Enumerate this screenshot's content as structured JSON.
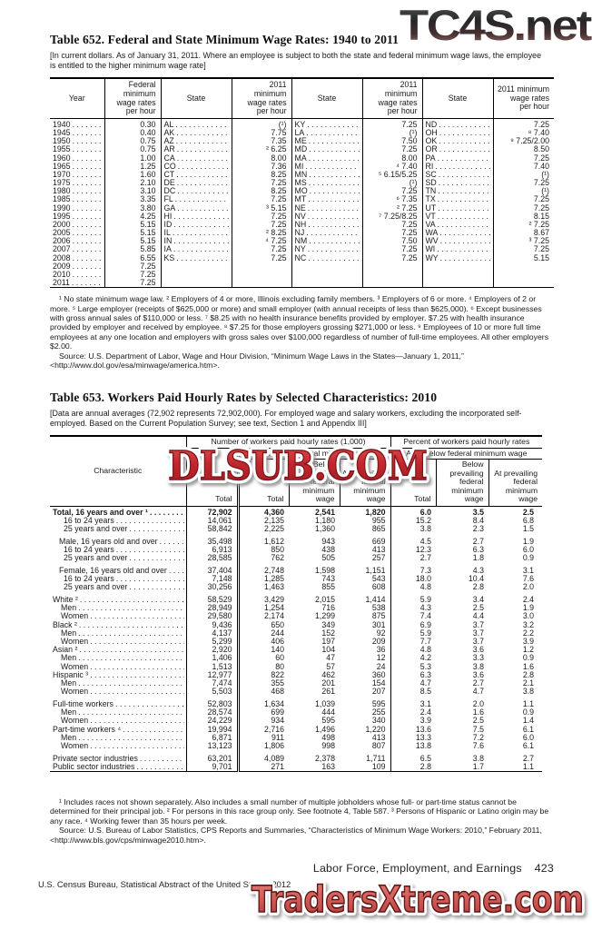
{
  "watermarks": {
    "top": "TC4S.net",
    "middle": "DLSUB.COM",
    "bottom": "TradersXtreme.com"
  },
  "colors": {
    "ink": "#1a1a1a",
    "watermark_red": "#c1272d",
    "watermark_red_light": "#d96a63",
    "tc4s_dark": "#3f3f3f",
    "tc4s_fade": "#9c7470"
  },
  "table652": {
    "title": "Table 652. Federal and State Minimum Wage Rates: 1940 to 2011",
    "note": "[In current dollars. As of January 31, 2011. Where an employee is subject to both the state and federal minimum wage laws, the employee is entitled to the higher minimum wage rate]",
    "headers": {
      "year": "Year",
      "federal": "Federal minimum wage rates per hour",
      "state": "State",
      "rate": "2011 minimum wage rates per hour"
    },
    "years": [
      [
        "1940",
        "0.30"
      ],
      [
        "1945",
        "0.40"
      ],
      [
        "1950",
        "0.75"
      ],
      [
        "1955",
        "0.75"
      ],
      [
        "1960",
        "1.00"
      ],
      [
        "1965",
        "1.25"
      ],
      [
        "1970",
        "1.60"
      ],
      [
        "1975",
        "2.10"
      ],
      [
        "1980",
        "3.10"
      ],
      [
        "1985",
        "3.35"
      ],
      [
        "1990",
        "3.80"
      ],
      [
        "1995",
        "4.25"
      ],
      [
        "2000",
        "5.15"
      ],
      [
        "2005",
        "5.15"
      ],
      [
        "2006",
        "5.15"
      ],
      [
        "2007",
        "5.85"
      ],
      [
        "2008",
        "6.55"
      ],
      [
        "2009",
        "7.25"
      ],
      [
        "2010",
        "7.25"
      ],
      [
        "2011",
        "7.25"
      ]
    ],
    "states_a": [
      [
        "AL",
        "(¹)"
      ],
      [
        "AK",
        "7.75"
      ],
      [
        "AZ",
        "7.35"
      ],
      [
        "AR",
        "² 6.25"
      ],
      [
        "CA",
        "8.00"
      ],
      [
        "CO",
        "7.36"
      ],
      [
        "CT",
        "8.25"
      ],
      [
        "DE",
        "7.25"
      ],
      [
        "DC",
        "8.25"
      ],
      [
        "FL",
        "7.25"
      ],
      [
        "GA",
        "³ 5.15"
      ],
      [
        "HI",
        "7.25"
      ],
      [
        "ID",
        "7.25"
      ],
      [
        "IL",
        "² 8.25"
      ],
      [
        "IN",
        "⁴ 7.25"
      ],
      [
        "IA",
        "7.25"
      ],
      [
        "KS",
        "7.25"
      ]
    ],
    "states_b": [
      [
        "KY",
        "7.25"
      ],
      [
        "LA",
        "(¹)"
      ],
      [
        "ME",
        "7.50"
      ],
      [
        "MD",
        "7.25"
      ],
      [
        "MA",
        "8.00"
      ],
      [
        "MI",
        "⁴ 7.40"
      ],
      [
        "MN",
        "⁵ 6.15/5.25"
      ],
      [
        "MS",
        "(¹)"
      ],
      [
        "MO",
        "7.25"
      ],
      [
        "MT",
        "⁶ 7.35"
      ],
      [
        "NE",
        "² 7.25"
      ],
      [
        "NV",
        "⁷ 7.25/8.25"
      ],
      [
        "NH",
        "7.25"
      ],
      [
        "NJ",
        "7.25"
      ],
      [
        "NM",
        "7.50"
      ],
      [
        "NY",
        "7.25"
      ],
      [
        "NC",
        "7.25"
      ]
    ],
    "states_c": [
      [
        "ND",
        "7.25"
      ],
      [
        "OH",
        "⁸ 7.40"
      ],
      [
        "OK",
        "⁹ 7.25/2.00"
      ],
      [
        "OR",
        "8.50"
      ],
      [
        "PA",
        "7.25"
      ],
      [
        "RI",
        "7.40"
      ],
      [
        "SC",
        "(¹)"
      ],
      [
        "SD",
        "7.25"
      ],
      [
        "TN",
        "(¹)"
      ],
      [
        "TX",
        "7.25"
      ],
      [
        "UT",
        "7.25"
      ],
      [
        "VT",
        "8.15"
      ],
      [
        "VA",
        "² 7.25"
      ],
      [
        "WA",
        "8.67"
      ],
      [
        "WV",
        "³ 7.25"
      ],
      [
        "WI",
        "7.25"
      ],
      [
        "WY",
        "5.15"
      ]
    ],
    "footnotes": "¹ No state minimum wage law. ² Employers of 4 or more, Illinois excluding family members. ³ Employers of 6 or more. ⁴ Employers of 2 or more. ⁵ Large employer (receipts of $625,000 or more) and small employer (with annual receipts of less than $625,000). ⁶ Except businesses with gross annual sales of $110,000 or less. ⁷ $8.25 with no health insurance benefits provided by employer. $7.25 with health insurance provided by employer and received by employee. ⁸ $7.25 for those employers grossing $271,000 or less. ⁹ Employees of 10 or more full time employees at any one location and employers with gross sales over $100,000 regardless of number of full-time employees. All other employers $2.00.",
    "source": "Source: U.S. Department of Labor, Wage and Hour Division, “Minimum Wage Laws in the States—January 1, 2011,” <http://www.dol.gov/esa/minwage/america.htm>."
  },
  "table653": {
    "title": "Table 653. Workers Paid Hourly Rates by Selected Characteristics: 2010",
    "note": "[Data are annual averages (72,902 represents 72,902,000). For employed wage and salary workers, excluding the incorporated self-employed. Based on the Current Population Survey; see text, Section 1 and Appendix III]",
    "headers": {
      "characteristic": "Characteristic",
      "number_group": "Number of workers paid hourly rates (1,000)",
      "percent_group": "Percent of workers paid hourly rates",
      "at_or_below": "At or below federal minimum wage",
      "total": "Total",
      "below": "Below prevailing federal minimum wage",
      "at": "At prevailing federal minimum wage"
    },
    "rows": [
      {
        "label": "Total, 16 years and over ¹",
        "bold": true,
        "indent": 0,
        "gap": false,
        "values": [
          "72,902",
          "4,360",
          "2,541",
          "1,820",
          "6.0",
          "3.5",
          "2.5"
        ]
      },
      {
        "label": "16 to 24 years",
        "bold": false,
        "indent": 2,
        "gap": false,
        "values": [
          "14,061",
          "2,135",
          "1,180",
          "955",
          "15.2",
          "8.4",
          "6.8"
        ]
      },
      {
        "label": "25 years and over",
        "bold": false,
        "indent": 2,
        "gap": false,
        "values": [
          "58,842",
          "2,225",
          "1,360",
          "865",
          "3.8",
          "2.3",
          "1.5"
        ]
      },
      {
        "label": "Male, 16 years old and over",
        "bold": false,
        "indent": 1,
        "gap": true,
        "values": [
          "35,498",
          "1,612",
          "943",
          "669",
          "4.5",
          "2.7",
          "1.9"
        ]
      },
      {
        "label": "16 to 24 years",
        "bold": false,
        "indent": 2,
        "gap": false,
        "values": [
          "6,913",
          "850",
          "438",
          "413",
          "12.3",
          "6.3",
          "6.0"
        ]
      },
      {
        "label": "25 years and over",
        "bold": false,
        "indent": 2,
        "gap": false,
        "values": [
          "28,585",
          "762",
          "505",
          "257",
          "2.7",
          "1.8",
          "0.9"
        ]
      },
      {
        "label": "Female, 16 years old and over",
        "bold": false,
        "indent": 1,
        "gap": true,
        "values": [
          "37,404",
          "2,748",
          "1,598",
          "1,151",
          "7.3",
          "4.3",
          "3.1"
        ]
      },
      {
        "label": "16 to 24 years",
        "bold": false,
        "indent": 2,
        "gap": false,
        "values": [
          "7,148",
          "1,285",
          "743",
          "543",
          "18.0",
          "10.4",
          "7.6"
        ]
      },
      {
        "label": "25 years and over",
        "bold": false,
        "indent": 2,
        "gap": false,
        "values": [
          "30,256",
          "1,463",
          "855",
          "608",
          "4.8",
          "2.8",
          "2.0"
        ]
      },
      {
        "label": "White ²",
        "bold": false,
        "indent": 0,
        "gap": true,
        "values": [
          "58,529",
          "3,429",
          "2,015",
          "1,414",
          "5.9",
          "3.4",
          "2.4"
        ]
      },
      {
        "label": "Men",
        "bold": false,
        "indent": 3,
        "gap": false,
        "values": [
          "28,949",
          "1,254",
          "716",
          "538",
          "4.3",
          "2.5",
          "1.9"
        ]
      },
      {
        "label": "Women",
        "bold": false,
        "indent": 3,
        "gap": false,
        "values": [
          "29,580",
          "2,174",
          "1,299",
          "875",
          "7.4",
          "4.4",
          "3.0"
        ]
      },
      {
        "label": "Black ²",
        "bold": false,
        "indent": 0,
        "gap": false,
        "values": [
          "9,436",
          "650",
          "349",
          "301",
          "6.9",
          "3.7",
          "3.2"
        ]
      },
      {
        "label": "Men",
        "bold": false,
        "indent": 3,
        "gap": false,
        "values": [
          "4,137",
          "244",
          "152",
          "92",
          "5.9",
          "3.7",
          "2.2"
        ]
      },
      {
        "label": "Women",
        "bold": false,
        "indent": 3,
        "gap": false,
        "values": [
          "5,299",
          "406",
          "197",
          "209",
          "7.7",
          "3.7",
          "3.9"
        ]
      },
      {
        "label": "Asian ²",
        "bold": false,
        "indent": 0,
        "gap": false,
        "values": [
          "2,920",
          "140",
          "104",
          "36",
          "4.8",
          "3.6",
          "1.2"
        ]
      },
      {
        "label": "Men",
        "bold": false,
        "indent": 3,
        "gap": false,
        "values": [
          "1,406",
          "60",
          "47",
          "12",
          "4.2",
          "3.3",
          "0.9"
        ]
      },
      {
        "label": "Women",
        "bold": false,
        "indent": 3,
        "gap": false,
        "values": [
          "1,513",
          "80",
          "57",
          "24",
          "5.3",
          "3.8",
          "1.6"
        ]
      },
      {
        "label": "Hispanic ³",
        "bold": false,
        "indent": 0,
        "gap": false,
        "values": [
          "12,977",
          "822",
          "462",
          "360",
          "6.3",
          "3.6",
          "2.8"
        ]
      },
      {
        "label": "Men",
        "bold": false,
        "indent": 3,
        "gap": false,
        "values": [
          "7,474",
          "355",
          "201",
          "154",
          "4.7",
          "2.7",
          "2.1"
        ]
      },
      {
        "label": "Women",
        "bold": false,
        "indent": 3,
        "gap": false,
        "values": [
          "5,503",
          "468",
          "261",
          "207",
          "8.5",
          "4.7",
          "3.8"
        ]
      },
      {
        "label": "Full-time workers",
        "bold": false,
        "indent": 0,
        "gap": true,
        "values": [
          "52,803",
          "1,634",
          "1,039",
          "595",
          "3.1",
          "2.0",
          "1.1"
        ]
      },
      {
        "label": "Men",
        "bold": false,
        "indent": 3,
        "gap": false,
        "values": [
          "28,574",
          "699",
          "444",
          "255",
          "2.4",
          "1.6",
          "0.9"
        ]
      },
      {
        "label": "Women",
        "bold": false,
        "indent": 3,
        "gap": false,
        "values": [
          "24,229",
          "934",
          "595",
          "340",
          "3.9",
          "2.5",
          "1.4"
        ]
      },
      {
        "label": "Part-time workers ⁴",
        "bold": false,
        "indent": 0,
        "gap": false,
        "values": [
          "19,994",
          "2,716",
          "1,496",
          "1,220",
          "13.6",
          "7.5",
          "6.1"
        ]
      },
      {
        "label": "Men",
        "bold": false,
        "indent": 3,
        "gap": false,
        "values": [
          "6,871",
          "911",
          "498",
          "413",
          "13.3",
          "7.2",
          "6.0"
        ]
      },
      {
        "label": "Women",
        "bold": false,
        "indent": 3,
        "gap": false,
        "values": [
          "13,123",
          "1,806",
          "998",
          "807",
          "13.8",
          "7.6",
          "6.1"
        ]
      },
      {
        "label": "Private sector industries",
        "bold": false,
        "indent": 0,
        "gap": true,
        "values": [
          "63,201",
          "4,089",
          "2,378",
          "1,711",
          "6.5",
          "3.8",
          "2.7"
        ]
      },
      {
        "label": "Public sector industries",
        "bold": false,
        "indent": 0,
        "gap": false,
        "values": [
          "9,701",
          "271",
          "163",
          "109",
          "2.8",
          "1.7",
          "1.1"
        ]
      }
    ],
    "footnotes": "¹ Includes races not shown separately. Also includes a small number of multiple jobholders whose full- or part-time status cannot be determined for their principal job. ² For persons in this race group only. See footnote 4, Table 587. ³ Persons of Hispanic or Latino origin may be any race. ⁴ Working fewer than 35 hours per week.",
    "source": "Source: U.S. Bureau of Labor Statistics, CPS Reports and Summaries, “Characteristics of Minimum Wage Workers: 2010,” February 2011, <http://www.bls.gov/cps/minwage2010.htm>."
  },
  "footer": {
    "section": "Labor Force, Employment, and Earnings",
    "page": "423",
    "credit": "U.S. Census Bureau, Statistical Abstract of the United States: 2012"
  }
}
